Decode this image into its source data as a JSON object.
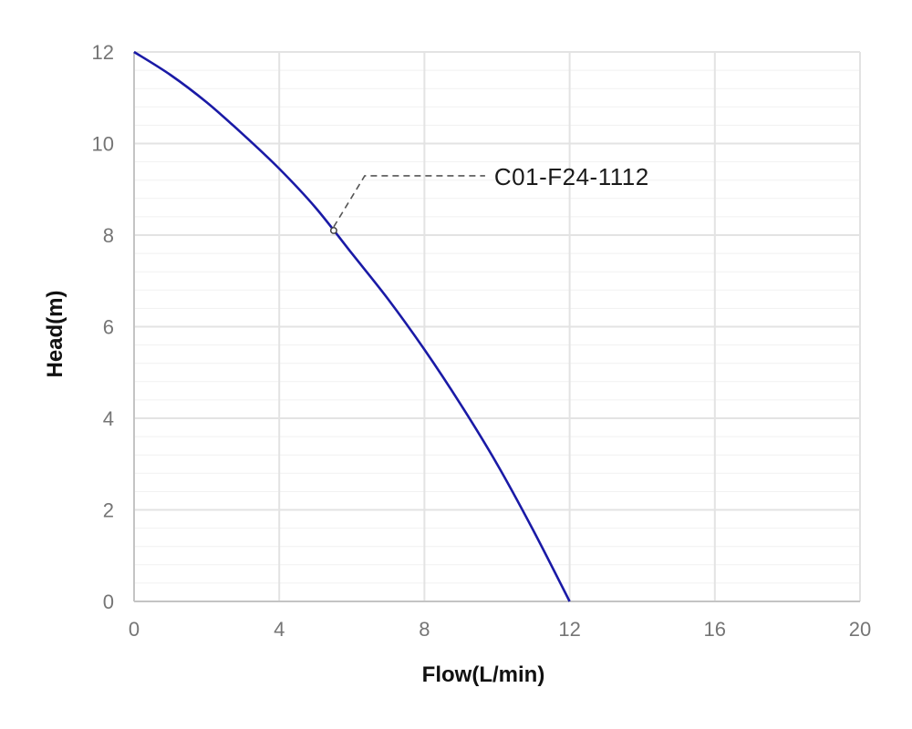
{
  "chart_data": {
    "type": "line",
    "xlabel": "Flow(L/min)",
    "ylabel": "Head(m)",
    "xlim": [
      0,
      20
    ],
    "ylim": [
      0,
      12
    ],
    "x_ticks": [
      "0",
      "4",
      "8",
      "12",
      "16",
      "20"
    ],
    "y_ticks": [
      "0",
      "2",
      "4",
      "6",
      "8",
      "10",
      "12"
    ],
    "grid": true,
    "series": [
      {
        "color": "#1a1aa6",
        "x": [
          0,
          1,
          2,
          3,
          4,
          5,
          6,
          7,
          8,
          9,
          10,
          11,
          12
        ],
        "y": [
          12.0,
          11.5,
          10.9,
          10.2,
          9.45,
          8.6,
          7.6,
          6.6,
          5.5,
          4.3,
          3.0,
          1.55,
          0
        ]
      }
    ],
    "annotations": [
      {
        "text": "C01-F24-1112",
        "x": 5.5,
        "y": 8.1
      }
    ]
  }
}
